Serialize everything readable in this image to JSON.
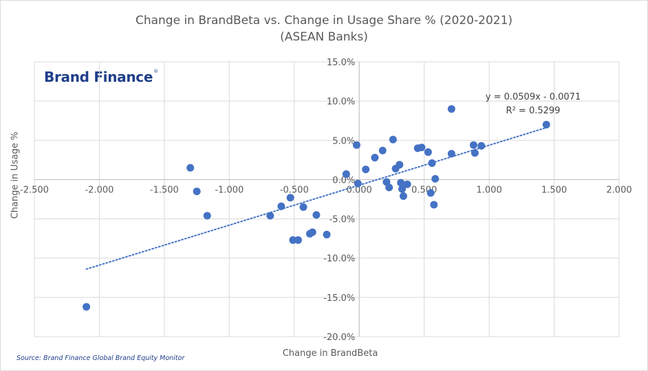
{
  "chart_data": {
    "type": "scatter",
    "title": "Change in BrandBeta vs. Change in Usage Share % (2020-2021)",
    "subtitle": "(ASEAN Banks)",
    "xlabel": "Change in BrandBeta",
    "ylabel": "Change in Usage %",
    "xlim": [
      -2.5,
      2.0
    ],
    "ylim": [
      -20,
      15
    ],
    "x_ticks": [
      -2.5,
      -2.0,
      -1.5,
      -1.0,
      -0.5,
      0.0,
      0.5,
      1.0,
      1.5,
      2.0
    ],
    "y_ticks": [
      -20,
      -15,
      -10,
      -5,
      0,
      5,
      10,
      15
    ],
    "x_tick_labels": [
      "-2.500",
      "-2.000",
      "-1.500",
      "-1.000",
      "-0.500",
      "0.000",
      "0.500",
      "1.000",
      "1.500",
      "2.000"
    ],
    "y_tick_labels": [
      "-20.0%",
      "-15.0%",
      "-10.0%",
      "-5.0%",
      "0.0%",
      "5.0%",
      "10.0%",
      "15.0%"
    ],
    "grid": true,
    "points": [
      {
        "x": -2.1,
        "y": -16.2
      },
      {
        "x": -1.3,
        "y": 1.5
      },
      {
        "x": -1.25,
        "y": -1.5
      },
      {
        "x": -1.17,
        "y": -4.6
      },
      {
        "x": -0.685,
        "y": -4.6
      },
      {
        "x": -0.6,
        "y": -3.4
      },
      {
        "x": -0.53,
        "y": -2.3
      },
      {
        "x": -0.51,
        "y": -7.7
      },
      {
        "x": -0.47,
        "y": -7.7
      },
      {
        "x": -0.43,
        "y": -3.5
      },
      {
        "x": -0.38,
        "y": -6.9
      },
      {
        "x": -0.36,
        "y": -6.7
      },
      {
        "x": -0.33,
        "y": -4.5
      },
      {
        "x": -0.25,
        "y": -7.0
      },
      {
        "x": -0.1,
        "y": 0.7
      },
      {
        "x": -0.02,
        "y": 4.4
      },
      {
        "x": -0.01,
        "y": -0.5
      },
      {
        "x": 0.05,
        "y": 1.3
      },
      {
        "x": 0.12,
        "y": 2.8
      },
      {
        "x": 0.18,
        "y": 3.7
      },
      {
        "x": 0.21,
        "y": -0.3
      },
      {
        "x": 0.23,
        "y": -1.0
      },
      {
        "x": 0.26,
        "y": 5.1
      },
      {
        "x": 0.28,
        "y": 1.4
      },
      {
        "x": 0.31,
        "y": 1.9
      },
      {
        "x": 0.32,
        "y": -0.4
      },
      {
        "x": 0.33,
        "y": -1.2
      },
      {
        "x": 0.34,
        "y": -2.1
      },
      {
        "x": 0.37,
        "y": -0.6
      },
      {
        "x": 0.45,
        "y": 4.0
      },
      {
        "x": 0.48,
        "y": 4.1
      },
      {
        "x": 0.53,
        "y": 3.5
      },
      {
        "x": 0.55,
        "y": -1.7
      },
      {
        "x": 0.56,
        "y": 2.1
      },
      {
        "x": 0.575,
        "y": -3.2
      },
      {
        "x": 0.585,
        "y": 0.1
      },
      {
        "x": 0.71,
        "y": 9.0
      },
      {
        "x": 0.71,
        "y": 3.3
      },
      {
        "x": 0.88,
        "y": 4.4
      },
      {
        "x": 0.89,
        "y": 3.4
      },
      {
        "x": 0.94,
        "y": 4.3
      },
      {
        "x": 1.44,
        "y": 7.0
      }
    ],
    "trendline": {
      "type": "linear",
      "slope": 0.0509,
      "intercept": -0.0071,
      "x_range": [
        -2.1,
        1.44
      ],
      "style": "dotted",
      "equation_label": "y = 0.0509x - 0.0071",
      "r2_label": "R² = 0.5299"
    },
    "colors": {
      "points": "#4472c4",
      "trendline": "#4472c4",
      "grid": "#d9d9d9",
      "axis": "#bfbfbf"
    }
  },
  "logo": {
    "text": "Brand Finance",
    "mark": "®"
  },
  "source": "Source: Brand Finance Global Brand Equity Monitor"
}
